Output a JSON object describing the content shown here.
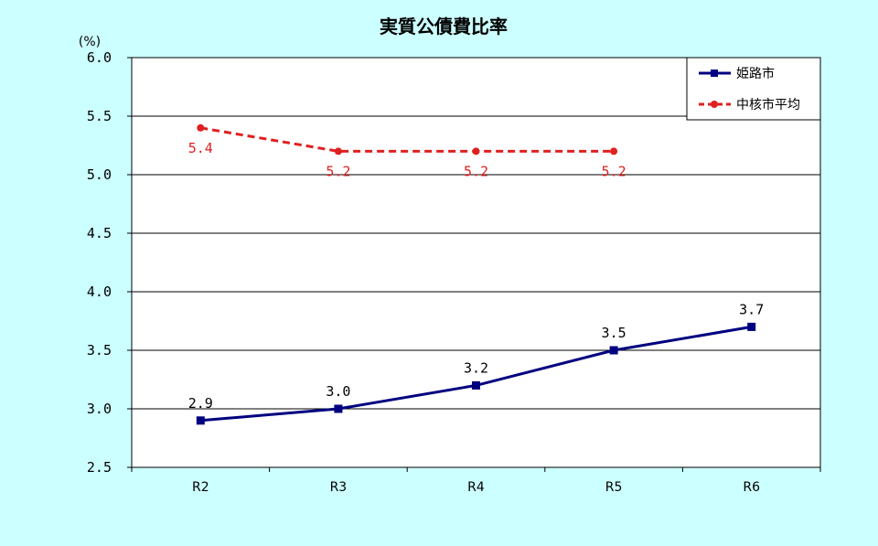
{
  "chart_data": {
    "type": "line",
    "title": "実質公債費比率",
    "unit_label": "(%)",
    "categories": [
      "R2",
      "R3",
      "R4",
      "R5",
      "R6"
    ],
    "ylim": [
      2.5,
      6.0
    ],
    "yticks": [
      "2.5",
      "3.0",
      "3.5",
      "4.0",
      "4.5",
      "5.0",
      "5.5",
      "6.0"
    ],
    "grid": true,
    "legend_position": "top-right",
    "series": [
      {
        "name": "姫路市",
        "values": [
          2.9,
          3.0,
          3.2,
          3.5,
          3.7
        ],
        "labels": [
          "2.9",
          "3.0",
          "3.2",
          "3.5",
          "3.7"
        ],
        "color": "#000080",
        "style": "solid",
        "marker": "square"
      },
      {
        "name": "中核市平均",
        "values": [
          5.4,
          5.2,
          5.2,
          5.2,
          null
        ],
        "labels": [
          "5.4",
          "5.2",
          "5.2",
          "5.2",
          null
        ],
        "color": "#e02020",
        "style": "dashed",
        "marker": "circle"
      }
    ]
  },
  "colors": {
    "background": "#ccffff",
    "plot_area": "#ffffff"
  }
}
